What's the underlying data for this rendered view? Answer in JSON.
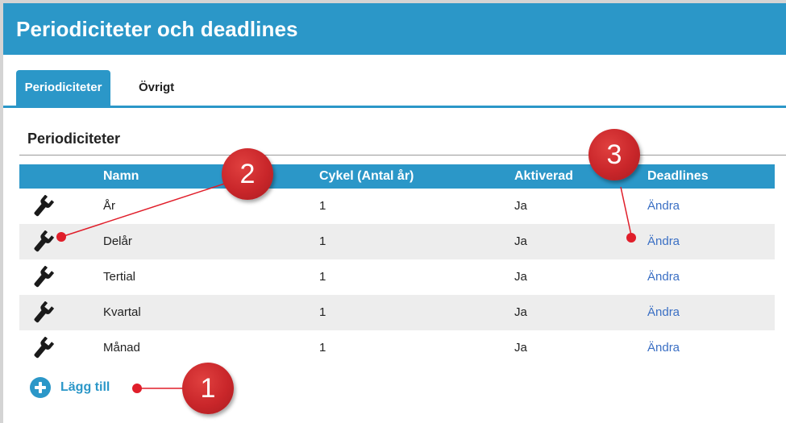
{
  "header": {
    "title": "Periodiciteter och deadlines"
  },
  "tabs": [
    {
      "label": "Periodiciteter",
      "active": true
    },
    {
      "label": "Övrigt",
      "active": false
    }
  ],
  "section": {
    "title": "Periodiciteter"
  },
  "table": {
    "columns": [
      "",
      "Namn",
      "Cykel (Antal år)",
      "Aktiverad",
      "Deadlines"
    ],
    "rows": [
      {
        "icon": "wrench-icon",
        "name": "År",
        "cycle": "1",
        "active": "Ja",
        "deadlines": "Ändra"
      },
      {
        "icon": "wrench-icon",
        "name": "Delår",
        "cycle": "1",
        "active": "Ja",
        "deadlines": "Ändra"
      },
      {
        "icon": "wrench-icon",
        "name": "Tertial",
        "cycle": "1",
        "active": "Ja",
        "deadlines": "Ändra"
      },
      {
        "icon": "wrench-icon",
        "name": "Kvartal",
        "cycle": "1",
        "active": "Ja",
        "deadlines": "Ändra"
      },
      {
        "icon": "wrench-icon",
        "name": "Månad",
        "cycle": "1",
        "active": "Ja",
        "deadlines": "Ändra"
      }
    ]
  },
  "add_button": {
    "label": "Lägg till",
    "icon": "plus-circle-icon"
  },
  "annotations": [
    {
      "number": "1",
      "points_to": "add-button"
    },
    {
      "number": "2",
      "points_to": "wrench-icon"
    },
    {
      "number": "3",
      "points_to": "deadlines-link"
    }
  ],
  "colors": {
    "accent": "#2b97c8",
    "link": "#3a6fc4",
    "annotation": "#c9262a",
    "row_alt": "#ededed"
  }
}
